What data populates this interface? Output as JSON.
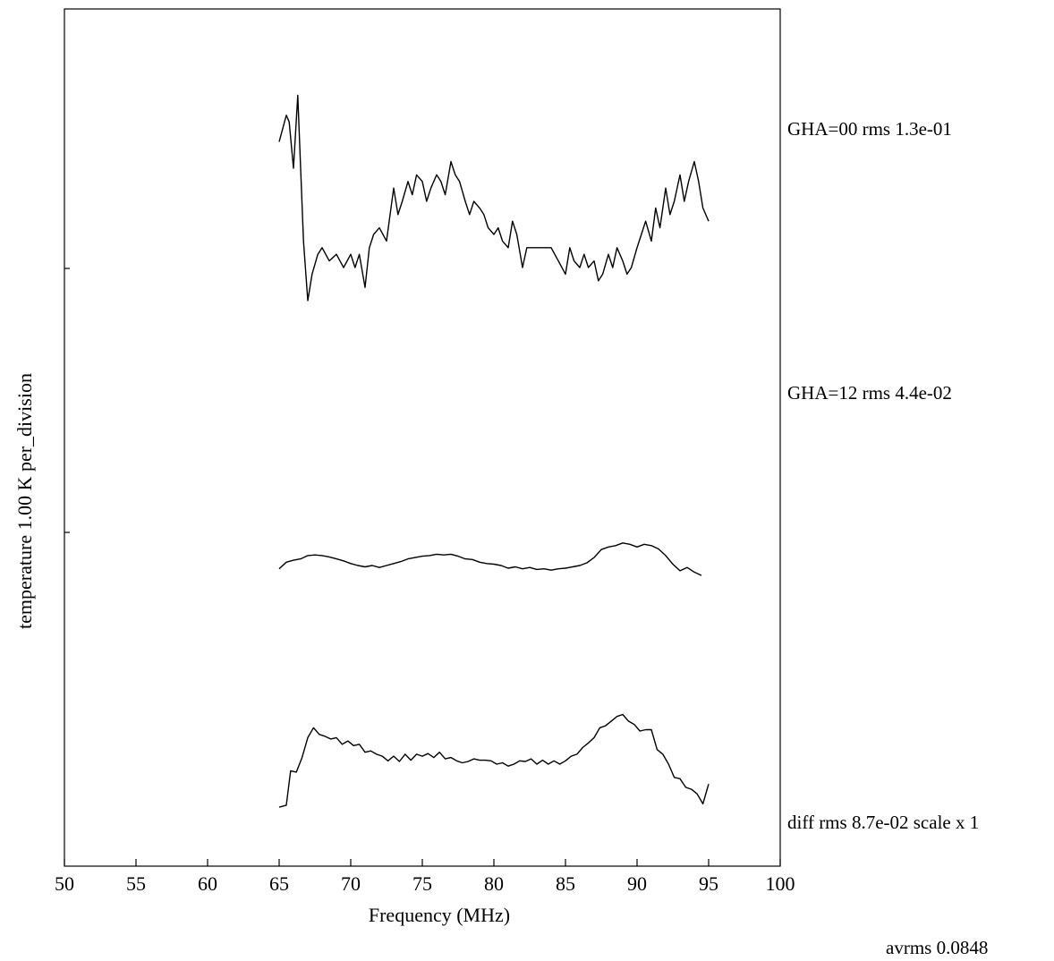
{
  "chart_data": {
    "type": "line",
    "xlabel": "Frequency (MHz)",
    "ylabel": "temperature   1.00 K  per_division",
    "xlim": [
      50,
      100
    ],
    "x_ticks": [
      "50",
      "55",
      "60",
      "65",
      "70",
      "75",
      "80",
      "85",
      "90",
      "95",
      "100"
    ],
    "series": [
      {
        "name": "GHA=00 rms 1.3e-01",
        "x": [
          65.0,
          65.5,
          65.7,
          66.0,
          66.3,
          66.7,
          67.0,
          67.3,
          67.7,
          68.0,
          68.5,
          69.0,
          69.5,
          70.0,
          70.3,
          70.6,
          71.0,
          71.3,
          71.6,
          72.0,
          72.5,
          73.0,
          73.3,
          73.6,
          74.0,
          74.3,
          74.6,
          75.0,
          75.3,
          75.6,
          76.0,
          76.3,
          76.6,
          77.0,
          77.3,
          77.6,
          78.0,
          78.3,
          78.6,
          79.0,
          79.3,
          79.6,
          80.0,
          80.3,
          80.6,
          81.0,
          81.3,
          81.6,
          82.0,
          82.3,
          82.6,
          83.0,
          83.5,
          84.0,
          84.5,
          85.0,
          85.3,
          85.6,
          86.0,
          86.3,
          86.6,
          87.0,
          87.3,
          87.6,
          88.0,
          88.3,
          88.6,
          89.0,
          89.3,
          89.6,
          90.0,
          90.3,
          90.6,
          91.0,
          91.3,
          91.6,
          92.0,
          92.3,
          92.6,
          93.0,
          93.3,
          93.6,
          94.0,
          94.3,
          94.6,
          95.0
        ],
        "values": [
          5.9,
          6.3,
          6.2,
          5.5,
          6.6,
          4.4,
          3.5,
          3.9,
          4.2,
          4.3,
          4.1,
          4.2,
          4.0,
          4.2,
          4.0,
          4.2,
          3.7,
          4.3,
          4.5,
          4.6,
          4.4,
          5.2,
          4.8,
          5.0,
          5.3,
          5.1,
          5.4,
          5.3,
          5.0,
          5.2,
          5.4,
          5.3,
          5.1,
          5.6,
          5.4,
          5.3,
          5.0,
          4.8,
          5.0,
          4.9,
          4.8,
          4.6,
          4.5,
          4.6,
          4.4,
          4.3,
          4.7,
          4.5,
          4.0,
          4.3,
          4.3,
          4.3,
          4.3,
          4.3,
          4.1,
          3.9,
          4.3,
          4.1,
          4.0,
          4.2,
          4.0,
          4.1,
          3.8,
          3.9,
          4.2,
          4.0,
          4.3,
          4.1,
          3.9,
          4.0,
          4.3,
          4.5,
          4.7,
          4.4,
          4.9,
          4.6,
          5.2,
          4.8,
          5.0,
          5.4,
          5.0,
          5.3,
          5.6,
          5.3,
          4.9,
          4.7
        ]
      },
      {
        "name": "GHA=12 rms 4.4e-02",
        "x": [
          65.0,
          65.5,
          66.0,
          66.5,
          67.0,
          67.5,
          68.0,
          68.5,
          69.0,
          69.5,
          70.0,
          70.5,
          71.0,
          71.5,
          72.0,
          72.5,
          73.0,
          73.5,
          74.0,
          74.5,
          75.0,
          75.5,
          76.0,
          76.5,
          77.0,
          77.5,
          78.0,
          78.5,
          79.0,
          79.5,
          80.0,
          80.5,
          81.0,
          81.5,
          82.0,
          82.5,
          83.0,
          83.5,
          84.0,
          84.5,
          85.0,
          85.5,
          86.0,
          86.5,
          87.0,
          87.5,
          88.0,
          88.5,
          89.0,
          89.5,
          90.0,
          90.5,
          91.0,
          91.5,
          92.0,
          92.5,
          93.0,
          93.5,
          94.0,
          94.5
        ],
        "values": [
          -0.55,
          -0.45,
          -0.42,
          -0.4,
          -0.35,
          -0.34,
          -0.35,
          -0.37,
          -0.4,
          -0.43,
          -0.47,
          -0.5,
          -0.52,
          -0.5,
          -0.53,
          -0.5,
          -0.47,
          -0.44,
          -0.4,
          -0.38,
          -0.36,
          -0.35,
          -0.33,
          -0.34,
          -0.33,
          -0.36,
          -0.4,
          -0.41,
          -0.45,
          -0.47,
          -0.48,
          -0.5,
          -0.54,
          -0.52,
          -0.55,
          -0.53,
          -0.56,
          -0.55,
          -0.57,
          -0.55,
          -0.54,
          -0.52,
          -0.5,
          -0.46,
          -0.38,
          -0.26,
          -0.22,
          -0.2,
          -0.16,
          -0.18,
          -0.22,
          -0.18,
          -0.2,
          -0.25,
          -0.35,
          -0.48,
          -0.58,
          -0.53,
          -0.6,
          -0.65
        ]
      },
      {
        "name": "diff  rms 8.7e-02 scale x 1",
        "x": [
          65.0,
          65.5,
          65.8,
          66.2,
          66.6,
          67.0,
          67.4,
          67.8,
          68.2,
          68.6,
          69.0,
          69.4,
          69.8,
          70.2,
          70.6,
          71.0,
          71.4,
          71.8,
          72.2,
          72.6,
          73.0,
          73.4,
          73.8,
          74.2,
          74.6,
          75.0,
          75.4,
          75.8,
          76.2,
          76.6,
          77.0,
          77.4,
          77.8,
          78.2,
          78.6,
          79.0,
          79.4,
          79.8,
          80.2,
          80.6,
          81.0,
          81.4,
          81.8,
          82.2,
          82.6,
          83.0,
          83.4,
          83.8,
          84.2,
          84.6,
          85.0,
          85.4,
          85.8,
          86.2,
          86.6,
          87.0,
          87.4,
          87.8,
          88.2,
          88.6,
          89.0,
          89.4,
          89.8,
          90.2,
          90.6,
          91.0,
          91.4,
          91.8,
          92.2,
          92.6,
          93.0,
          93.4,
          93.8,
          94.2,
          94.6,
          95.0
        ],
        "values": [
          -4.15,
          -4.12,
          -3.6,
          -3.62,
          -3.4,
          -3.1,
          -2.95,
          -3.05,
          -3.08,
          -3.12,
          -3.1,
          -3.2,
          -3.15,
          -3.22,
          -3.2,
          -3.32,
          -3.3,
          -3.35,
          -3.38,
          -3.45,
          -3.38,
          -3.46,
          -3.35,
          -3.44,
          -3.35,
          -3.38,
          -3.34,
          -3.4,
          -3.32,
          -3.42,
          -3.4,
          -3.45,
          -3.48,
          -3.46,
          -3.42,
          -3.44,
          -3.44,
          -3.45,
          -3.5,
          -3.48,
          -3.53,
          -3.5,
          -3.45,
          -3.46,
          -3.42,
          -3.5,
          -3.44,
          -3.5,
          -3.45,
          -3.5,
          -3.45,
          -3.38,
          -3.35,
          -3.25,
          -3.18,
          -3.1,
          -2.95,
          -2.92,
          -2.85,
          -2.78,
          -2.75,
          -2.85,
          -2.9,
          -3.0,
          -2.98,
          -2.98,
          -3.28,
          -3.35,
          -3.5,
          -3.7,
          -3.72,
          -3.85,
          -3.88,
          -3.95,
          -4.1,
          -3.8
        ]
      }
    ],
    "footer": "avrms 0.0848"
  }
}
